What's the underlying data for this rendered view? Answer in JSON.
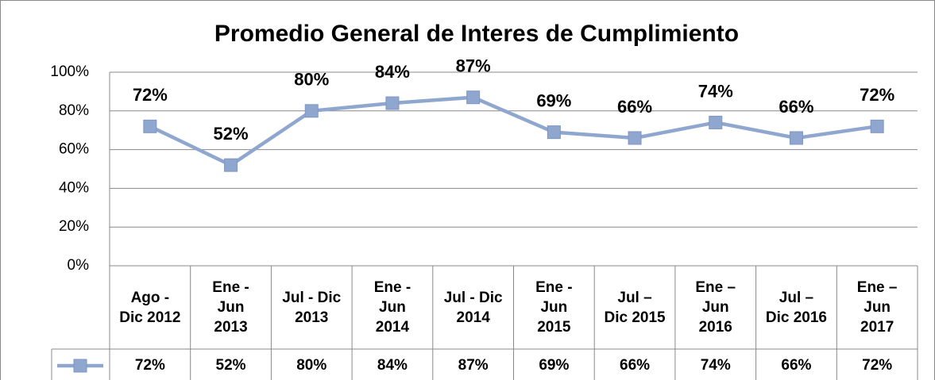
{
  "chart_data": {
    "type": "line",
    "title": "Promedio General de Interes de Cumplimiento",
    "categories": [
      "Ago - Dic 2012",
      "Ene - Jun 2013",
      "Jul - Dic 2013",
      "Ene - Jun 2014",
      "Jul - Dic 2014",
      "Ene - Jun 2015",
      "Jul – Dic 2015",
      "Ene – Jun 2016",
      "Jul – Dic 2016",
      "Ene – Jun 2017"
    ],
    "series": [
      {
        "color": "#8fa6cf",
        "values": [
          72,
          52,
          80,
          84,
          87,
          69,
          66,
          74,
          66,
          72
        ],
        "value_labels": [
          "72%",
          "52%",
          "80%",
          "84%",
          "87%",
          "69%",
          "66%",
          "74%",
          "66%",
          "72%"
        ]
      }
    ],
    "ylim": [
      0,
      100
    ],
    "yticks": [
      {
        "value": 0,
        "label": "0%"
      },
      {
        "value": 20,
        "label": "20%"
      },
      {
        "value": 40,
        "label": "40%"
      },
      {
        "value": 60,
        "label": "60%"
      },
      {
        "value": 80,
        "label": "80%"
      },
      {
        "value": 100,
        "label": "100%"
      }
    ],
    "grid": true
  }
}
